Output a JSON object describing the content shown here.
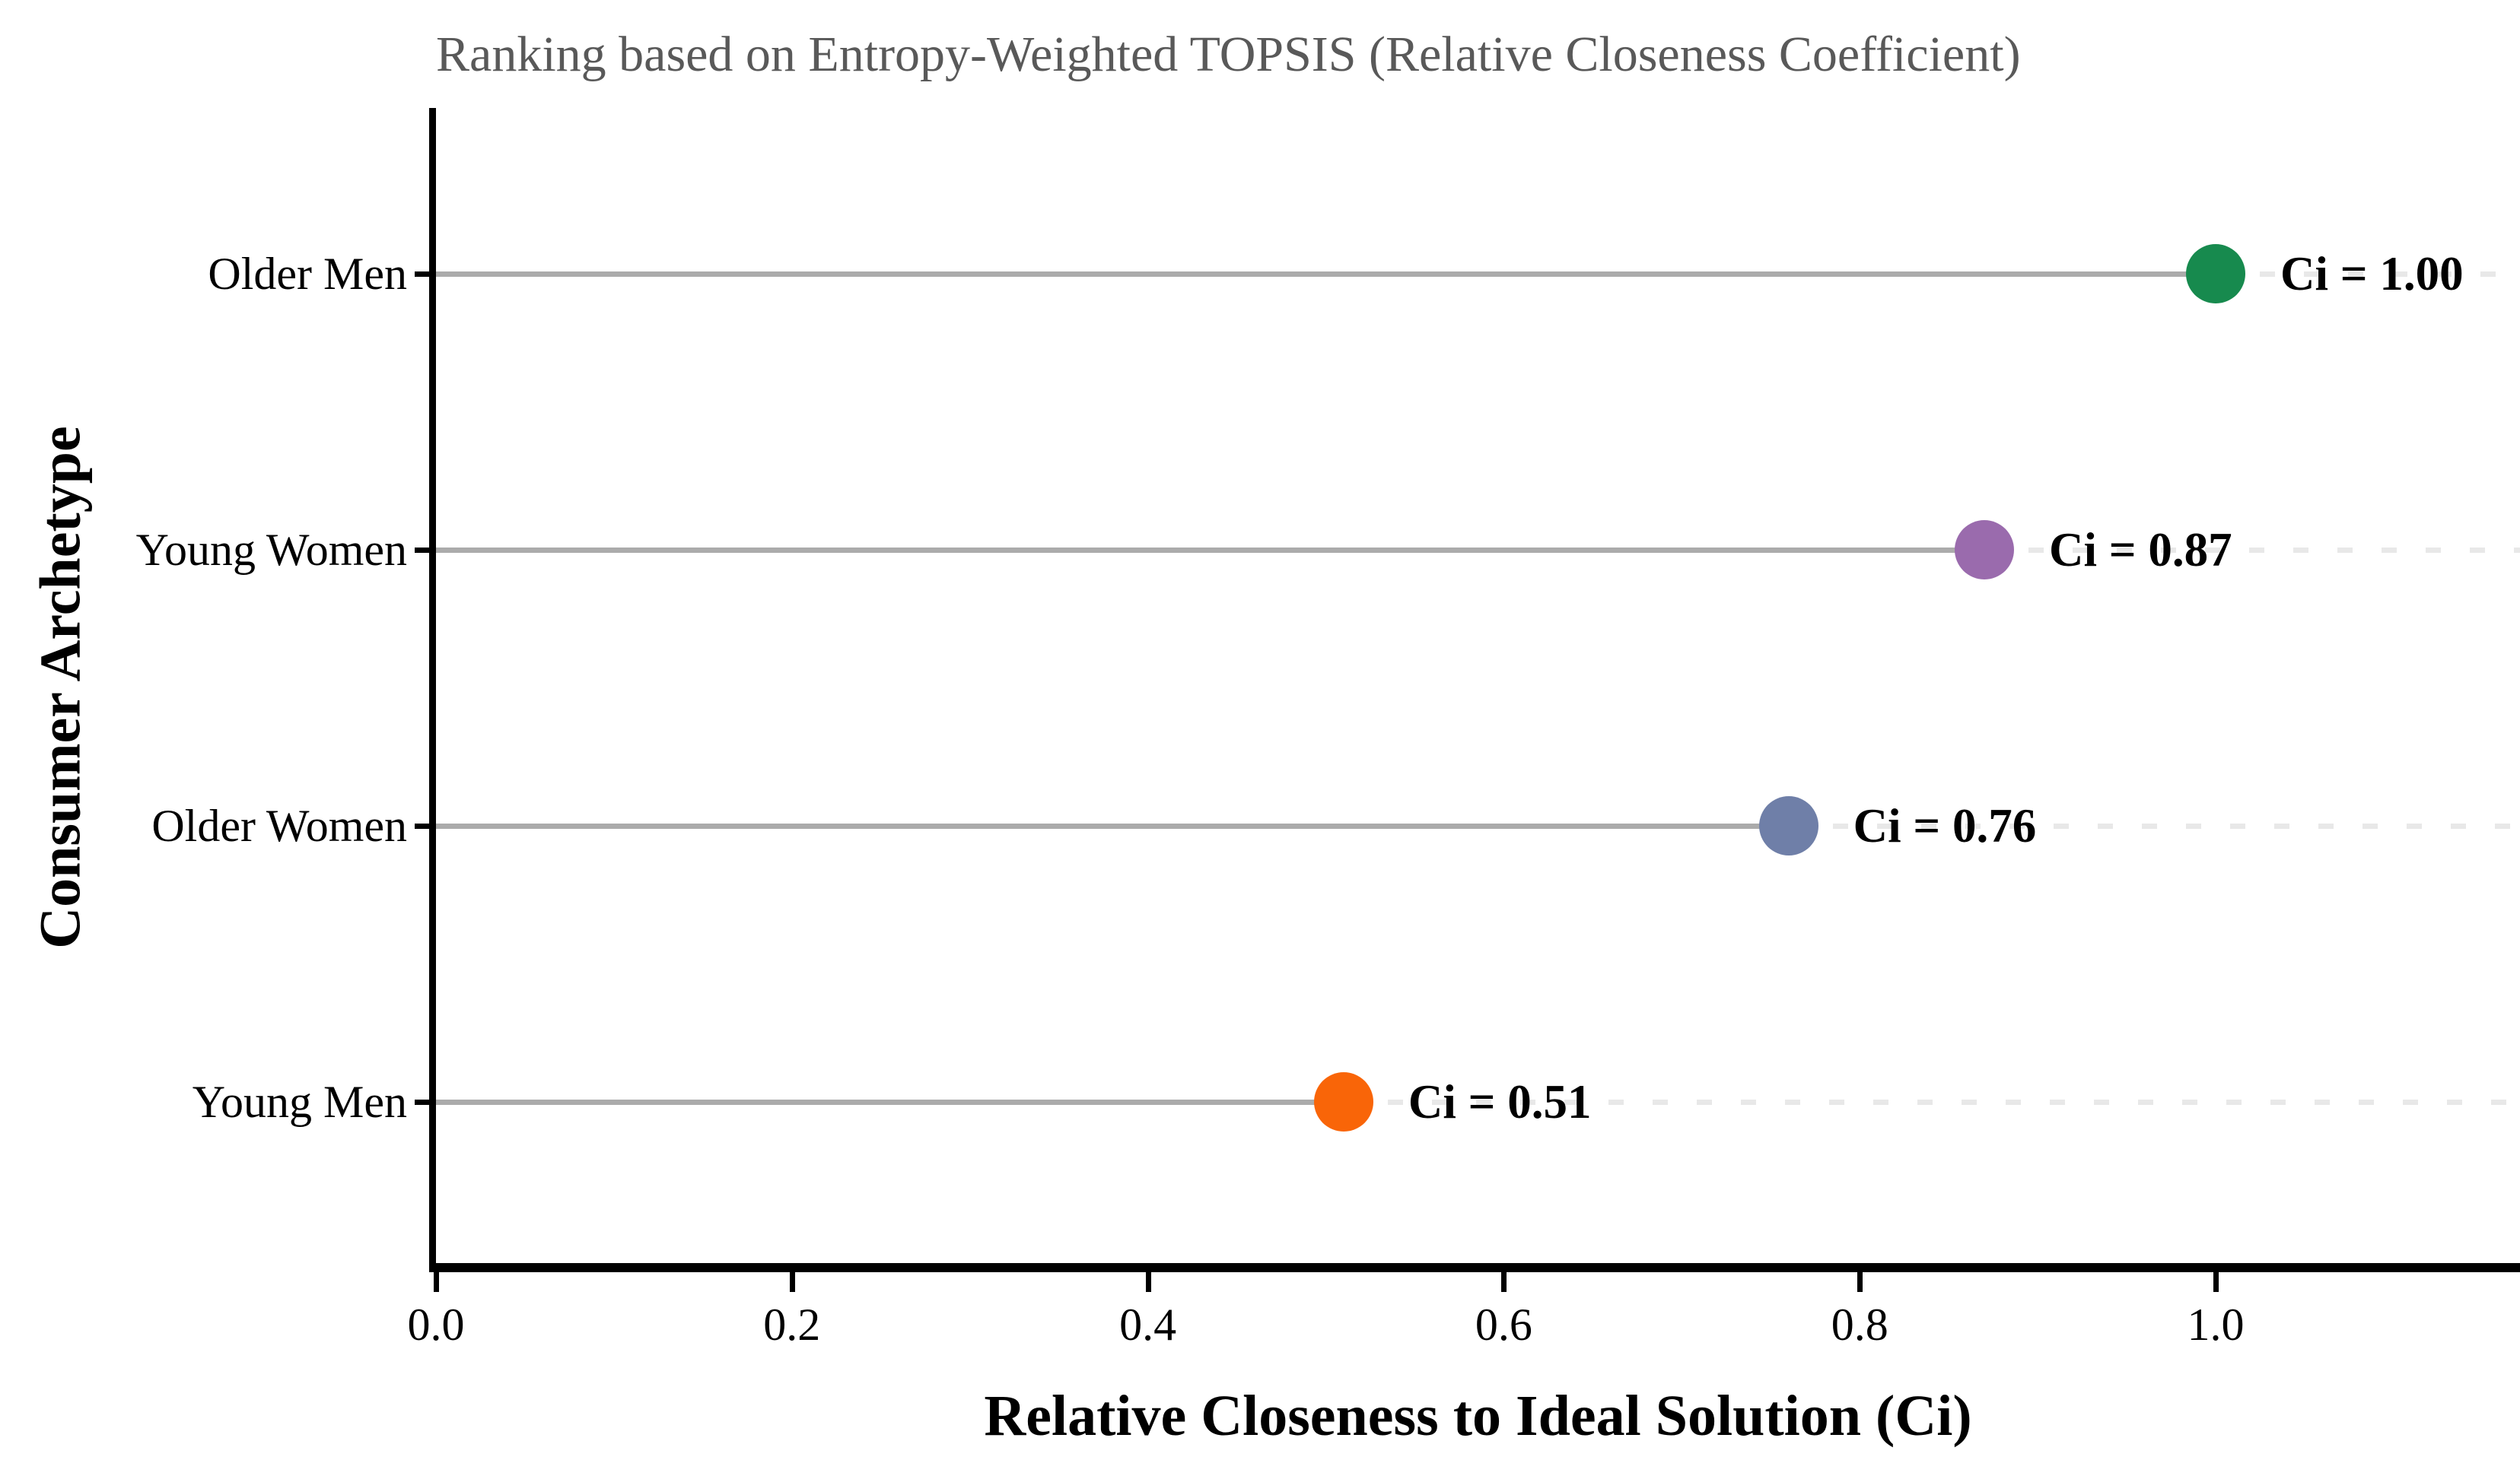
{
  "title": "Ranking based on Entropy-Weighted TOPSIS (Relative Closeness Coefficient)",
  "chart_data": {
    "type": "scatter",
    "variant": "horizontal lollipop / dot ranking plot",
    "title": "Ranking based on Entropy-Weighted TOPSIS (Relative Closeness Coefficient)",
    "xlabel": "Relative Closeness to Ideal Solution (Ci)",
    "ylabel": "Consumer Archetype",
    "categories": [
      "Older Men",
      "Young Women",
      "Older Women",
      "Young Men"
    ],
    "values": [
      1.0,
      0.87,
      0.76,
      0.51
    ],
    "point_labels": [
      "Ci = 1.00",
      "Ci = 0.87",
      "Ci = 0.76",
      "Ci = 0.51"
    ],
    "point_colors": [
      "#178a4e",
      "#9a6bad",
      "#6f7fa8",
      "#f96508"
    ],
    "x_ticks": [
      0.0,
      0.2,
      0.4,
      0.6,
      0.8,
      1.0
    ],
    "x_tick_labels": [
      "0.0",
      "0.2",
      "0.4",
      "0.6",
      "0.8",
      "1.0"
    ],
    "xlim": [
      0,
      1.171
    ],
    "grid": "light dashed guide line extending right of each point to plot edge",
    "legend": "none",
    "styling": {
      "stem_color": "#ababab",
      "dashed_guide_color": "#e8e8e8",
      "axis_color": "#000000",
      "title_color": "#595959",
      "label_color": "#000000",
      "background": "#ffffff"
    }
  }
}
